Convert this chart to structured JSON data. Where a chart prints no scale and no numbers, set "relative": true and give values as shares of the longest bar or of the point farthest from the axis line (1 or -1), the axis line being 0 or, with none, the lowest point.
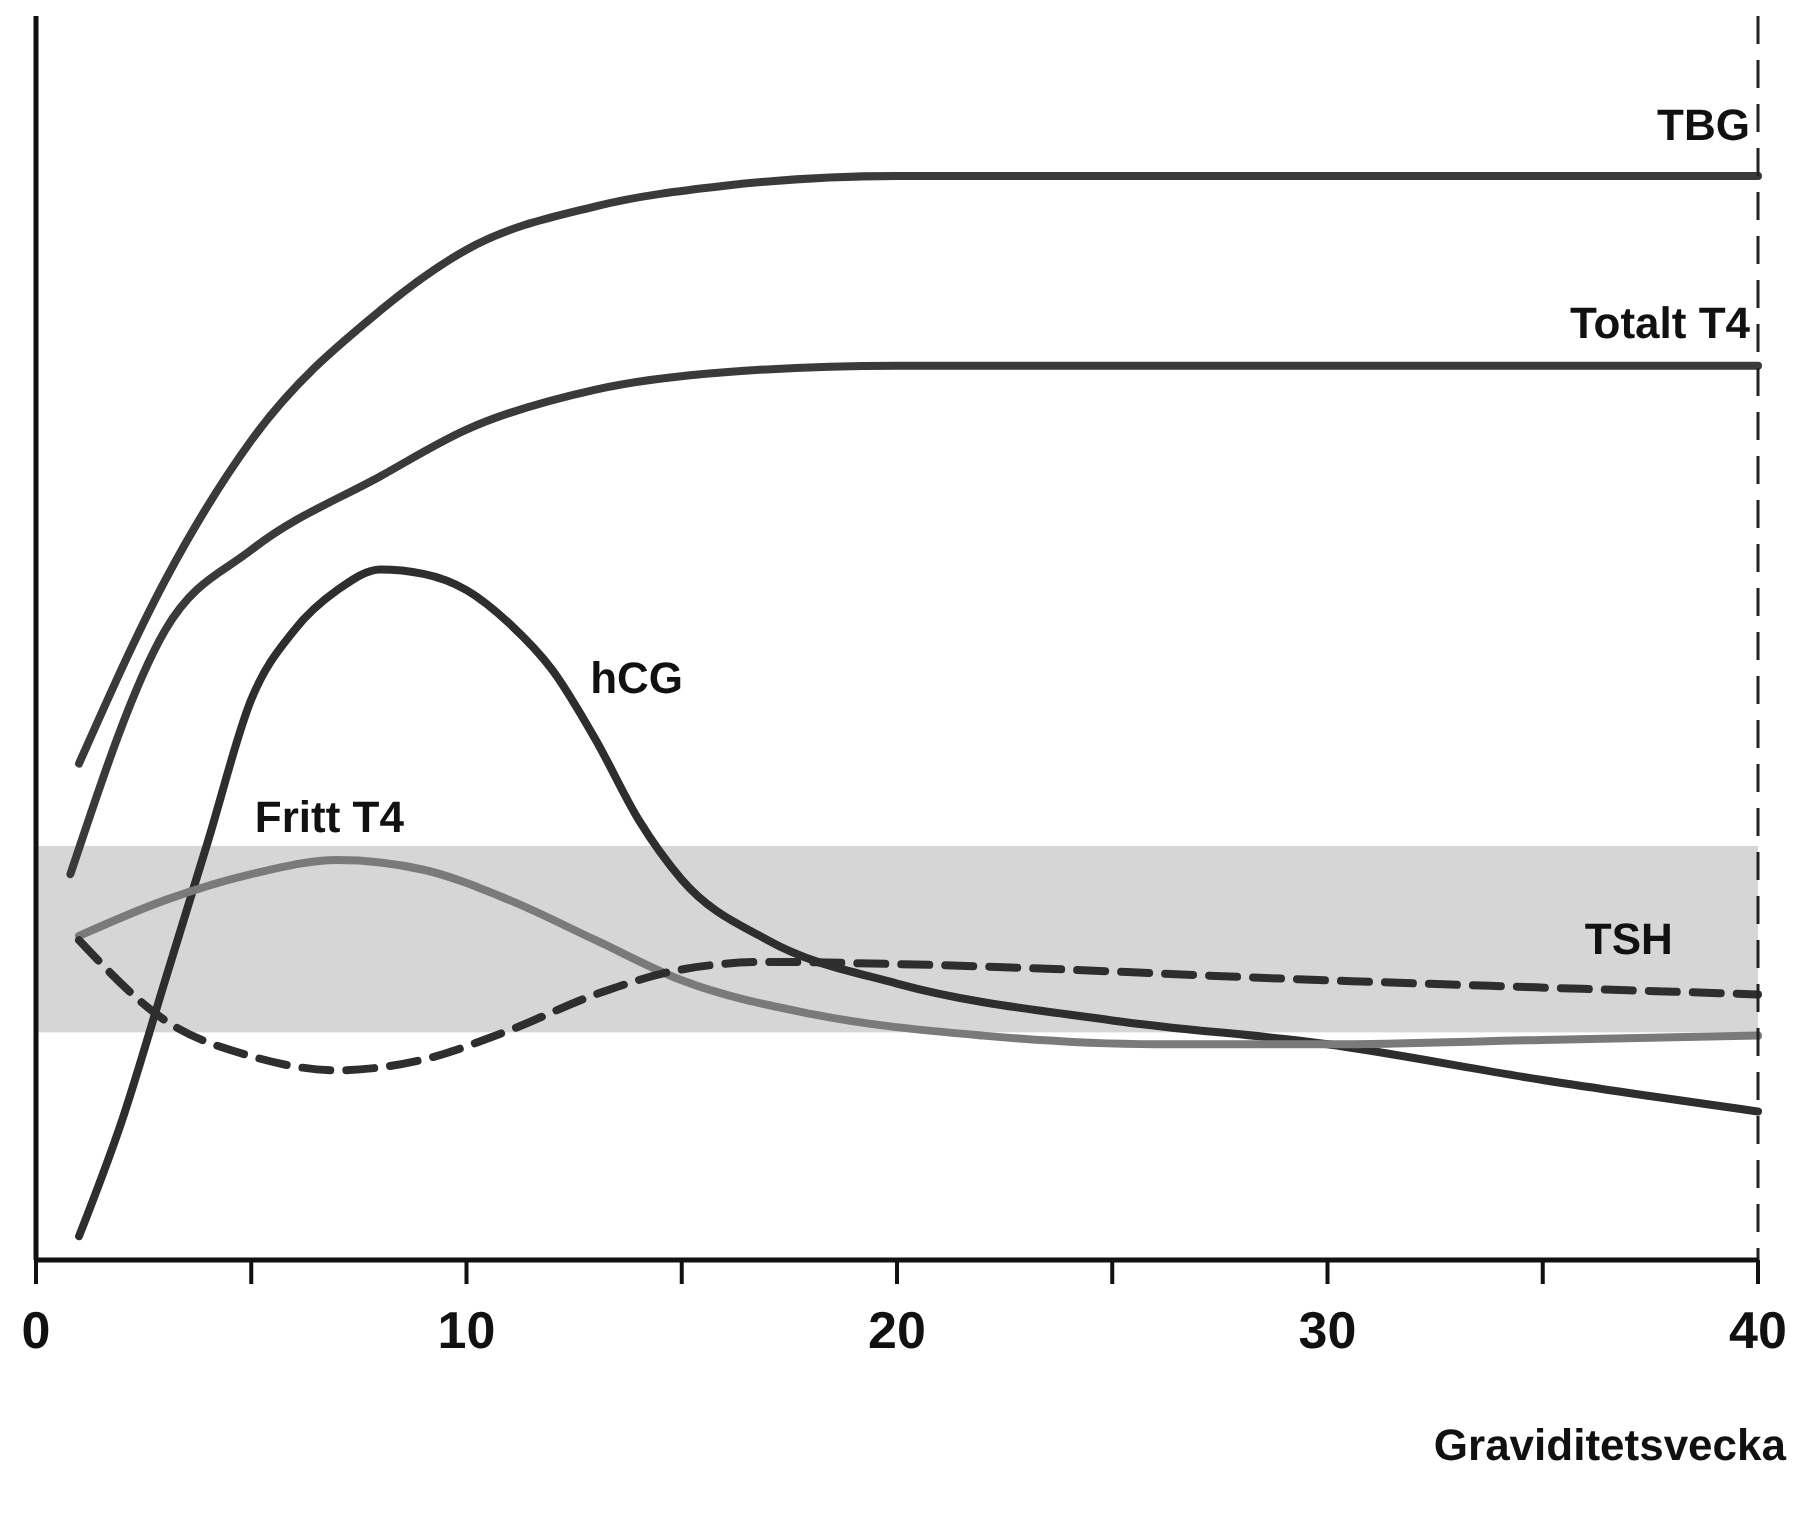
{
  "chart_data": {
    "type": "line",
    "relative": true,
    "xlabel": "Graviditetsvecka",
    "xlim": [
      0,
      40
    ],
    "xticks": [
      0,
      {
        "value": 5,
        "label": null
      },
      10,
      {
        "value": 15,
        "label": null
      },
      20,
      {
        "value": 25,
        "label": null
      },
      30,
      {
        "value": 35,
        "label": null
      },
      40
    ],
    "grid": false,
    "tick_labels": "x",
    "line_style": "solid",
    "marker": "none",
    "series": [
      {
        "name": "TBG",
        "color": "#3a3a3a",
        "x": [
          1,
          3,
          5,
          8,
          10,
          13,
          16,
          20,
          40
        ],
        "values": [
          0.458,
          0.627,
          0.756,
          0.876,
          0.932,
          0.972,
          0.991,
          1,
          1
        ]
      },
      {
        "name": "Totalt T4",
        "color": "#3a3a3a",
        "x": [
          0.8,
          3,
          5,
          8,
          10,
          13,
          16,
          20,
          40
        ],
        "values": [
          0.356,
          0.581,
          0.655,
          0.723,
          0.766,
          0.803,
          0.819,
          0.825,
          0.825
        ]
      },
      {
        "name": "hCG",
        "color": "#2e2e2e",
        "x": [
          1,
          2,
          3,
          4,
          5,
          6,
          7,
          8,
          9,
          10,
          11,
          12,
          13,
          14,
          15,
          17,
          20,
          25,
          30,
          35,
          40
        ],
        "values": [
          0.022,
          0.129,
          0.258,
          0.387,
          0.517,
          0.581,
          0.618,
          0.637,
          0.633,
          0.618,
          0.587,
          0.544,
          0.48,
          0.406,
          0.351,
          0.295,
          0.255,
          0.221,
          0.199,
          0.166,
          0.137
        ]
      },
      {
        "name": "Fritt T4",
        "color": "#7a7a7a",
        "x": [
          1,
          3,
          5,
          7,
          9,
          11,
          13,
          15,
          18,
          22,
          26,
          30,
          35,
          40
        ],
        "values": [
          0.299,
          0.332,
          0.356,
          0.369,
          0.36,
          0.332,
          0.295,
          0.258,
          0.227,
          0.207,
          0.199,
          0.199,
          0.203,
          0.207
        ]
      },
      {
        "name": "TSH",
        "color": "#2e2e2e",
        "line_style": "dashed",
        "x": [
          1,
          3,
          5,
          7,
          9,
          11,
          13,
          15,
          17,
          20,
          30,
          40
        ],
        "values": [
          0.295,
          0.221,
          0.188,
          0.175,
          0.185,
          0.212,
          0.245,
          0.268,
          0.275,
          0.273,
          0.258,
          0.245
        ]
      }
    ],
    "bands": [
      {
        "axis": "y",
        "from": 0.21,
        "to": 0.382,
        "color": "#d6d6d6"
      }
    ],
    "ref_lines": [
      {
        "axis": "x",
        "value": 40,
        "line_style": "dashed",
        "color": "#222222"
      }
    ]
  }
}
